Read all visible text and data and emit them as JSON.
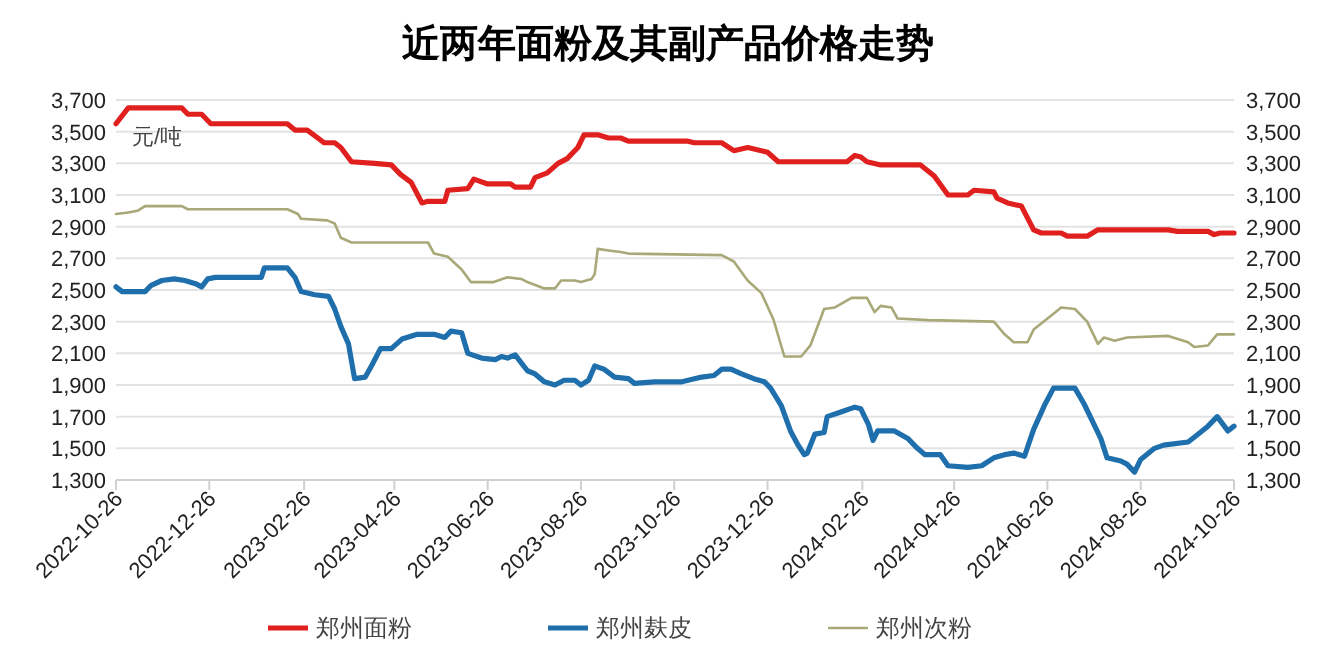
{
  "chart_data": {
    "type": "line",
    "title": "近两年面粉及其副产品价格走势",
    "annotations": [
      "元/吨"
    ],
    "xlim": [
      "2022-10-26",
      "2024-10-26"
    ],
    "xticks": [
      "2022-10-26",
      "2022-12-26",
      "2023-02-26",
      "2023-04-26",
      "2023-06-26",
      "2023-08-26",
      "2023-10-26",
      "2023-12-26",
      "2024-02-26",
      "2024-04-26",
      "2024-06-26",
      "2024-08-26",
      "2024-10-26"
    ],
    "ylim": [
      1300,
      3700
    ],
    "yticks": [
      {
        "value": 1300,
        "label": "1,300"
      },
      {
        "value": 1500,
        "label": "1,500"
      },
      {
        "value": 1700,
        "label": "1,700"
      },
      {
        "value": 1900,
        "label": "1,900"
      },
      {
        "value": 2100,
        "label": "2,100"
      },
      {
        "value": 2300,
        "label": "2,300"
      },
      {
        "value": 2500,
        "label": "2,500"
      },
      {
        "value": 2700,
        "label": "2,700"
      },
      {
        "value": 2900,
        "label": "2,900"
      },
      {
        "value": 3100,
        "label": "3,100"
      },
      {
        "value": 3300,
        "label": "3,300"
      },
      {
        "value": 3500,
        "label": "3,500"
      },
      {
        "value": 3700,
        "label": "3,700"
      }
    ],
    "y2lim": [
      1300,
      3700
    ],
    "y2ticks": [
      {
        "value": 1300,
        "label": "1,300"
      },
      {
        "value": 1500,
        "label": "1,500"
      },
      {
        "value": 1700,
        "label": "1,700"
      },
      {
        "value": 1900,
        "label": "1,900"
      },
      {
        "value": 2100,
        "label": "2,100"
      },
      {
        "value": 2300,
        "label": "2,300"
      },
      {
        "value": 2500,
        "label": "2,500"
      },
      {
        "value": 2700,
        "label": "2,700"
      },
      {
        "value": 2900,
        "label": "2,900"
      },
      {
        "value": 3100,
        "label": "3,100"
      },
      {
        "value": 3300,
        "label": "3,300"
      },
      {
        "value": 3500,
        "label": "3,500"
      },
      {
        "value": 3700,
        "label": "3,700"
      }
    ],
    "grid": "y",
    "legend": "bottom",
    "line_style": "solid",
    "series": [
      {
        "name": "郑州面粉",
        "color": "#e0201e",
        "x": [
          "2022-10-26",
          "2022-11-03",
          "2022-12-08",
          "2022-12-12",
          "2022-12-21",
          "2022-12-27",
          "2023-02-15",
          "2023-02-20",
          "2023-02-28",
          "2023-03-07",
          "2023-03-11",
          "2023-03-18",
          "2023-03-22",
          "2023-03-29",
          "2023-04-13",
          "2023-04-24",
          "2023-04-30",
          "2023-05-07",
          "2023-05-14",
          "2023-05-18",
          "2023-05-29",
          "2023-05-31",
          "2023-06-13",
          "2023-06-17",
          "2023-06-26",
          "2023-07-11",
          "2023-07-14",
          "2023-07-24",
          "2023-07-27",
          "2023-08-04",
          "2023-08-11",
          "2023-08-17",
          "2023-08-24",
          "2023-08-28",
          "2023-09-06",
          "2023-09-13",
          "2023-09-21",
          "2023-09-26",
          "2023-11-04",
          "2023-11-08",
          "2023-11-26",
          "2023-12-04",
          "2023-12-13",
          "2023-12-26",
          "2024-01-02",
          "2024-02-16",
          "2024-02-21",
          "2024-02-25",
          "2024-02-29",
          "2024-03-09",
          "2024-04-04",
          "2024-04-13",
          "2024-04-22",
          "2024-05-05",
          "2024-05-09",
          "2024-05-22",
          "2024-05-24",
          "2024-05-31",
          "2024-06-09",
          "2024-06-17",
          "2024-06-22",
          "2024-07-05",
          "2024-07-09",
          "2024-07-22",
          "2024-07-29",
          "2024-09-13",
          "2024-09-19",
          "2024-10-09",
          "2024-10-13",
          "2024-10-17",
          "2024-10-26"
        ],
        "values": [
          3550,
          3650,
          3650,
          3610,
          3610,
          3550,
          3550,
          3510,
          3510,
          3460,
          3430,
          3430,
          3400,
          3310,
          3300,
          3290,
          3230,
          3180,
          3050,
          3060,
          3060,
          3130,
          3140,
          3200,
          3170,
          3170,
          3150,
          3150,
          3210,
          3240,
          3300,
          3330,
          3400,
          3480,
          3480,
          3460,
          3460,
          3440,
          3440,
          3430,
          3430,
          3380,
          3400,
          3370,
          3310,
          3310,
          3350,
          3340,
          3310,
          3290,
          3290,
          3220,
          3100,
          3100,
          3130,
          3120,
          3080,
          3050,
          3030,
          2880,
          2860,
          2860,
          2840,
          2840,
          2880,
          2880,
          2870,
          2870,
          2850,
          2860,
          2860
        ]
      },
      {
        "name": "郑州麸皮",
        "color": "#1f6fad",
        "x": [
          "2022-10-26",
          "2022-10-30",
          "2022-11-14",
          "2022-11-18",
          "2022-11-25",
          "2022-12-03",
          "2022-12-10",
          "2022-12-17",
          "2022-12-21",
          "2022-12-25",
          "2022-12-30",
          "2023-01-29",
          "2023-01-31",
          "2023-02-15",
          "2023-02-20",
          "2023-02-24",
          "2023-03-05",
          "2023-03-14",
          "2023-03-18",
          "2023-03-22",
          "2023-03-27",
          "2023-03-31",
          "2023-04-07",
          "2023-04-11",
          "2023-04-17",
          "2023-04-24",
          "2023-05-01",
          "2023-05-11",
          "2023-05-22",
          "2023-05-29",
          "2023-06-02",
          "2023-06-09",
          "2023-06-13",
          "2023-06-22",
          "2023-07-01",
          "2023-07-05",
          "2023-07-09",
          "2023-07-14",
          "2023-07-18",
          "2023-07-22",
          "2023-07-27",
          "2023-08-02",
          "2023-08-09",
          "2023-08-15",
          "2023-08-22",
          "2023-08-26",
          "2023-08-31",
          "2023-09-04",
          "2023-09-10",
          "2023-09-17",
          "2023-09-26",
          "2023-09-30",
          "2023-10-13",
          "2023-10-31",
          "2023-11-13",
          "2023-11-21",
          "2023-11-26",
          "2023-12-02",
          "2023-12-09",
          "2023-12-17",
          "2023-12-24",
          "2023-12-28",
          "2024-01-04",
          "2024-01-10",
          "2024-01-15",
          "2024-01-19",
          "2024-01-21",
          "2024-01-26",
          "2024-02-01",
          "2024-02-03",
          "2024-02-12",
          "2024-02-21",
          "2024-02-25",
          "2024-03-01",
          "2024-03-04",
          "2024-03-07",
          "2024-03-18",
          "2024-03-27",
          "2024-04-02",
          "2024-04-07",
          "2024-04-17",
          "2024-04-22",
          "2024-05-05",
          "2024-05-14",
          "2024-05-22",
          "2024-05-29",
          "2024-06-04",
          "2024-06-11",
          "2024-06-17",
          "2024-06-24",
          "2024-06-30",
          "2024-07-14",
          "2024-07-20",
          "2024-07-27",
          "2024-07-31",
          "2024-08-04",
          "2024-08-13",
          "2024-08-17",
          "2024-08-22",
          "2024-08-26",
          "2024-09-04",
          "2024-09-10",
          "2024-09-26",
          "2024-09-30",
          "2024-10-09",
          "2024-10-15",
          "2024-10-22",
          "2024-10-26"
        ],
        "values": [
          2520,
          2490,
          2490,
          2530,
          2560,
          2570,
          2560,
          2540,
          2520,
          2570,
          2580,
          2580,
          2640,
          2640,
          2580,
          2490,
          2470,
          2460,
          2380,
          2270,
          2160,
          1940,
          1950,
          2020,
          2130,
          2130,
          2190,
          2220,
          2220,
          2200,
          2240,
          2230,
          2100,
          2070,
          2060,
          2080,
          2070,
          2090,
          2040,
          1990,
          1970,
          1920,
          1900,
          1930,
          1930,
          1900,
          1930,
          2020,
          2000,
          1950,
          1940,
          1910,
          1920,
          1920,
          1950,
          1960,
          2000,
          2000,
          1970,
          1940,
          1920,
          1880,
          1770,
          1610,
          1520,
          1460,
          1470,
          1590,
          1600,
          1700,
          1730,
          1760,
          1750,
          1650,
          1550,
          1610,
          1610,
          1560,
          1500,
          1460,
          1460,
          1390,
          1380,
          1390,
          1440,
          1460,
          1470,
          1450,
          1620,
          1770,
          1880,
          1880,
          1780,
          1640,
          1560,
          1440,
          1420,
          1400,
          1350,
          1430,
          1500,
          1520,
          1540,
          1570,
          1640,
          1700,
          1610,
          1640
        ]
      },
      {
        "name": "郑州次粉",
        "color": "#a8a878",
        "x": [
          "2022-10-26",
          "2022-11-03",
          "2022-11-09",
          "2022-11-14",
          "2022-12-08",
          "2022-12-12",
          "2023-02-15",
          "2023-02-22",
          "2023-02-24",
          "2023-03-13",
          "2023-03-18",
          "2023-03-22",
          "2023-03-29",
          "2023-05-18",
          "2023-05-22",
          "2023-05-31",
          "2023-06-09",
          "2023-06-15",
          "2023-06-30",
          "2023-07-09",
          "2023-07-18",
          "2023-07-22",
          "2023-08-02",
          "2023-08-09",
          "2023-08-13",
          "2023-08-22",
          "2023-08-26",
          "2023-09-02",
          "2023-09-04",
          "2023-09-06",
          "2023-09-13",
          "2023-09-21",
          "2023-09-26",
          "2023-11-26",
          "2023-12-04",
          "2023-12-13",
          "2023-12-22",
          "2023-12-30",
          "2024-01-06",
          "2024-01-17",
          "2024-01-23",
          "2024-02-01",
          "2024-02-08",
          "2024-02-19",
          "2024-02-29",
          "2024-03-05",
          "2024-03-09",
          "2024-03-16",
          "2024-03-20",
          "2024-04-09",
          "2024-05-22",
          "2024-05-29",
          "2024-06-04",
          "2024-06-13",
          "2024-06-17",
          "2024-06-30",
          "2024-07-05",
          "2024-07-14",
          "2024-07-22",
          "2024-07-29",
          "2024-08-02",
          "2024-08-09",
          "2024-08-17",
          "2024-09-13",
          "2024-09-26",
          "2024-09-30",
          "2024-10-09",
          "2024-10-15",
          "2024-10-26"
        ],
        "values": [
          2980,
          2990,
          3000,
          3030,
          3030,
          3010,
          3010,
          2980,
          2950,
          2940,
          2920,
          2830,
          2800,
          2800,
          2730,
          2710,
          2630,
          2550,
          2550,
          2580,
          2570,
          2550,
          2510,
          2510,
          2560,
          2560,
          2550,
          2570,
          2600,
          2760,
          2750,
          2740,
          2730,
          2720,
          2680,
          2560,
          2480,
          2310,
          2080,
          2080,
          2150,
          2380,
          2390,
          2450,
          2450,
          2360,
          2400,
          2390,
          2320,
          2310,
          2300,
          2220,
          2170,
          2170,
          2250,
          2350,
          2390,
          2380,
          2300,
          2160,
          2200,
          2180,
          2200,
          2210,
          2170,
          2140,
          2150,
          2220,
          2220
        ]
      }
    ]
  }
}
